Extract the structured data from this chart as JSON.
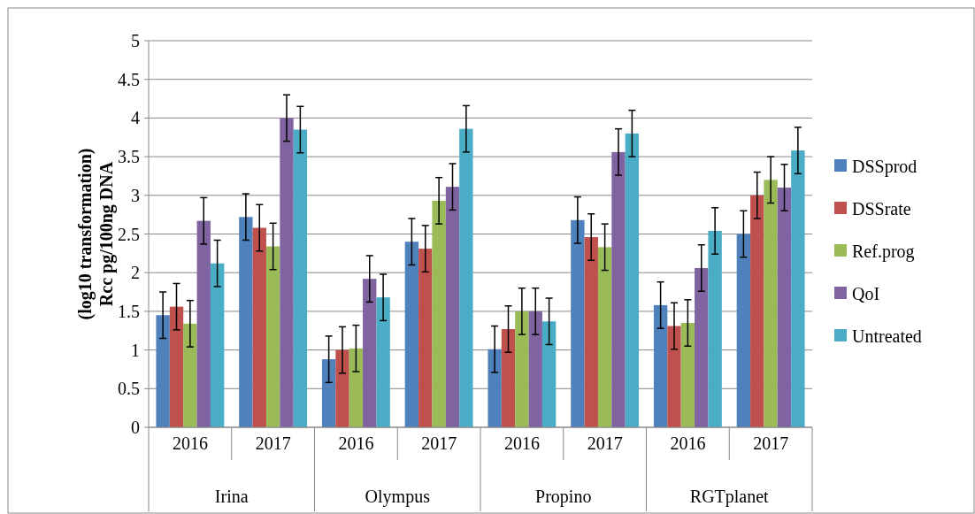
{
  "chart_data": {
    "type": "bar",
    "ylabel": "(log10 transformation)\nRcc pg/100ng DNA",
    "categories": [
      "2016",
      "2017",
      "2016",
      "2017",
      "2016",
      "2017",
      "2016",
      "2017"
    ],
    "annotations": [
      "Irina",
      "Olympus",
      "Propino",
      "RGTplanet"
    ],
    "ylim": [
      0,
      5
    ],
    "yticks": [
      0,
      0.5,
      1,
      1.5,
      2,
      2.5,
      3,
      3.5,
      4,
      4.5,
      5
    ],
    "grid": "y",
    "legend": "right",
    "series": [
      {
        "name": "DSSprod",
        "color": "#4f81bd",
        "values": [
          1.45,
          2.72,
          0.88,
          2.4,
          1.01,
          2.68,
          1.58,
          2.5
        ],
        "errors": [
          0.3,
          0.3,
          0.3,
          0.3,
          0.3,
          0.3,
          0.3,
          0.3
        ]
      },
      {
        "name": "DSSrate",
        "color": "#c0504d",
        "values": [
          1.56,
          2.58,
          1.0,
          2.31,
          1.27,
          2.46,
          1.31,
          3.0
        ],
        "errors": [
          0.3,
          0.3,
          0.3,
          0.3,
          0.3,
          0.3,
          0.3,
          0.3
        ]
      },
      {
        "name": "Ref.prog",
        "color": "#9bbb59",
        "values": [
          1.34,
          2.34,
          1.02,
          2.93,
          1.5,
          2.33,
          1.35,
          3.2
        ],
        "errors": [
          0.3,
          0.3,
          0.3,
          0.3,
          0.3,
          0.3,
          0.3,
          0.3
        ]
      },
      {
        "name": "QoI",
        "color": "#8064a2",
        "values": [
          2.67,
          4.0,
          1.92,
          3.11,
          1.5,
          3.56,
          2.06,
          3.1
        ],
        "errors": [
          0.3,
          0.3,
          0.3,
          0.3,
          0.3,
          0.3,
          0.3,
          0.3
        ]
      },
      {
        "name": "Untreated",
        "color": "#4bacc6",
        "values": [
          2.12,
          3.85,
          1.68,
          3.86,
          1.37,
          3.8,
          2.54,
          3.58
        ],
        "errors": [
          0.3,
          0.3,
          0.3,
          0.3,
          0.3,
          0.3,
          0.3,
          0.3
        ]
      }
    ]
  }
}
